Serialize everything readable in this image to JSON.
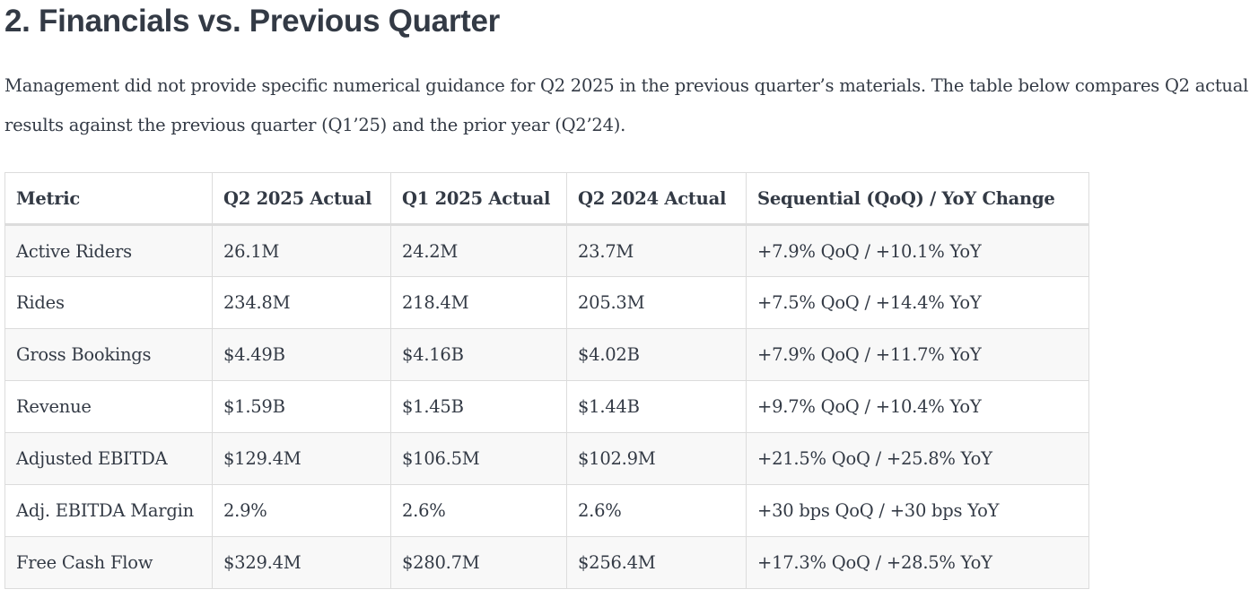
{
  "section": {
    "title": "2. Financials vs. Previous Quarter",
    "intro": "Management did not provide specific numerical guidance for Q2 2025 in the previous quarter’s materials. The table below compares Q2 actual results against the previous quarter (Q1’25) and the prior year (Q2’24)."
  },
  "table": {
    "headers": [
      "Metric",
      "Q2 2025 Actual",
      "Q1 2025 Actual",
      "Q2 2024 Actual",
      "Sequential (QoQ) / YoY Change"
    ],
    "rows": [
      [
        "Active Riders",
        "26.1M",
        "24.2M",
        "23.7M",
        "+7.9% QoQ / +10.1% YoY"
      ],
      [
        "Rides",
        "234.8M",
        "218.4M",
        "205.3M",
        "+7.5% QoQ / +14.4% YoY"
      ],
      [
        "Gross Bookings",
        "$4.49B",
        "$4.16B",
        "$4.02B",
        "+7.9% QoQ / +11.7% YoY"
      ],
      [
        "Revenue",
        "$1.59B",
        "$1.45B",
        "$1.44B",
        "+9.7% QoQ / +10.4% YoY"
      ],
      [
        "Adjusted EBITDA",
        "$129.4M",
        "$106.5M",
        "$102.9M",
        "+21.5% QoQ / +25.8% YoY"
      ],
      [
        "Adj. EBITDA Margin",
        "2.9%",
        "2.6%",
        "2.6%",
        "+30 bps QoQ / +30 bps YoY"
      ],
      [
        "Free Cash Flow",
        "$329.4M",
        "$280.7M",
        "$256.4M",
        "+17.3% QoQ / +28.5% YoY"
      ]
    ]
  }
}
